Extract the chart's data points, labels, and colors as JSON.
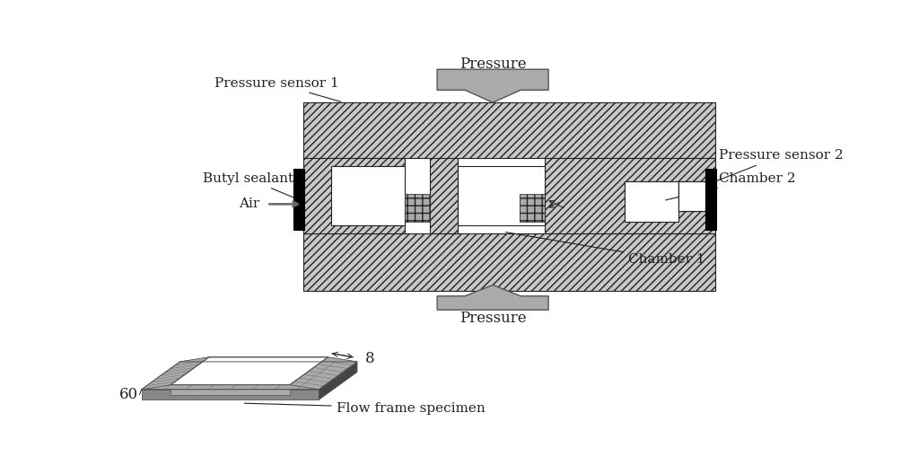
{
  "bg_color": "#ffffff",
  "hc": "#c8c8c8",
  "he": "#222222",
  "hp": "////",
  "lw": 0.8,
  "fs": 11,
  "labels": {
    "pressure_sensor_1": "Pressure sensor 1",
    "butyl_sealant": "Butyl sealant",
    "air": "Air",
    "pressure_top": "Pressure",
    "pressure_bottom": "Pressure",
    "pressure_sensor_2": "Pressure sensor 2",
    "chamber_1": "Chamber 1",
    "chamber_2": "Chamber 2",
    "flow_frame": "Flow frame specimen",
    "dim_60": "60",
    "dim_8": "8"
  }
}
